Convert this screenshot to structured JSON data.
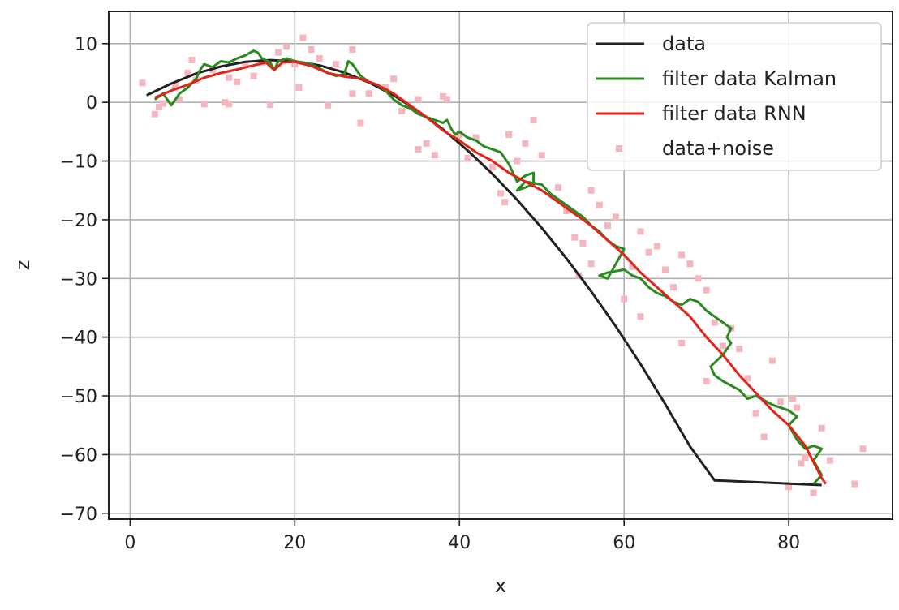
{
  "chart_data": {
    "type": "line",
    "title": "",
    "xlabel": "x",
    "ylabel": "z",
    "xlim": [
      -2.6,
      92.6
    ],
    "ylim": [
      -71,
      15.5
    ],
    "xticks": [
      0,
      20,
      40,
      60,
      80
    ],
    "yticks": [
      10,
      0,
      -10,
      -20,
      -30,
      -40,
      -50,
      -60,
      -70
    ],
    "xtick_labels": [
      "0",
      "20",
      "40",
      "60",
      "80"
    ],
    "ytick_labels": [
      "10",
      "0",
      "−10",
      "−20",
      "−30",
      "−40",
      "−50",
      "−60",
      "−70"
    ],
    "grid": true,
    "legend_position": "top-right",
    "series": [
      {
        "name": "data",
        "kind": "line",
        "color": "#222222",
        "points": [
          [
            2,
            1.2
          ],
          [
            5,
            3.2
          ],
          [
            8,
            4.9
          ],
          [
            11,
            6.1
          ],
          [
            14,
            6.9
          ],
          [
            17,
            7.2
          ],
          [
            20,
            7.0
          ],
          [
            23,
            6.3
          ],
          [
            26,
            5.1
          ],
          [
            29,
            3.4
          ],
          [
            32,
            1.2
          ],
          [
            35,
            -1.5
          ],
          [
            38,
            -4.6
          ],
          [
            41,
            -8.2
          ],
          [
            44,
            -12.2
          ],
          [
            47,
            -16.6
          ],
          [
            50,
            -21.4
          ],
          [
            53,
            -26.6
          ],
          [
            56,
            -32.2
          ],
          [
            59,
            -38.2
          ],
          [
            62,
            -44.6
          ],
          [
            65,
            -51.4
          ],
          [
            68,
            -58.6
          ],
          [
            71,
            -64.4
          ],
          [
            84,
            -65.2
          ]
        ]
      },
      {
        "name": "filter data Kalman",
        "kind": "line",
        "color": "#2a8a1f",
        "points": [
          [
            3,
            0.5
          ],
          [
            4,
            1.5
          ],
          [
            5,
            -0.5
          ],
          [
            6,
            1.5
          ],
          [
            7,
            2.5
          ],
          [
            8,
            4.0
          ],
          [
            8.5,
            5.5
          ],
          [
            9,
            6.5
          ],
          [
            10,
            6.0
          ],
          [
            11,
            7.0
          ],
          [
            12,
            6.8
          ],
          [
            13,
            7.5
          ],
          [
            14,
            8.0
          ],
          [
            15,
            8.8
          ],
          [
            15.5,
            8.5
          ],
          [
            16,
            7.5
          ],
          [
            17,
            6.8
          ],
          [
            17.5,
            5.5
          ],
          [
            18,
            7.0
          ],
          [
            19,
            7.5
          ],
          [
            20,
            7.0
          ],
          [
            21,
            6.8
          ],
          [
            22,
            6.5
          ],
          [
            23,
            5.8
          ],
          [
            24,
            5.0
          ],
          [
            25,
            4.5
          ],
          [
            26,
            4.8
          ],
          [
            26.5,
            7.0
          ],
          [
            27,
            6.5
          ],
          [
            27.5,
            5.5
          ],
          [
            28,
            4.5
          ],
          [
            29,
            3.5
          ],
          [
            30,
            3.0
          ],
          [
            31,
            2.0
          ],
          [
            32,
            0.5
          ],
          [
            33,
            -0.5
          ],
          [
            34,
            -1.0
          ],
          [
            35,
            -2.0
          ],
          [
            36,
            -2.5
          ],
          [
            37,
            -3.0
          ],
          [
            38,
            -3.5
          ],
          [
            38.5,
            -3.0
          ],
          [
            39,
            -4.5
          ],
          [
            39.5,
            -5.5
          ],
          [
            40,
            -5.0
          ],
          [
            41,
            -6.0
          ],
          [
            42,
            -6.5
          ],
          [
            43,
            -7.5
          ],
          [
            44,
            -8.0
          ],
          [
            45,
            -8.5
          ],
          [
            46,
            -10.5
          ],
          [
            47,
            -13.5
          ],
          [
            48,
            -12.5
          ],
          [
            49,
            -12.0
          ],
          [
            49,
            -14.0
          ],
          [
            47,
            -15.0
          ],
          [
            48,
            -13.5
          ],
          [
            50,
            -14.0
          ],
          [
            51,
            -15.5
          ],
          [
            52,
            -16.5
          ],
          [
            53,
            -17.5
          ],
          [
            54,
            -18.5
          ],
          [
            55,
            -19.5
          ],
          [
            56,
            -21.0
          ],
          [
            57,
            -22.0
          ],
          [
            58,
            -23.5
          ],
          [
            59,
            -24.5
          ],
          [
            60,
            -25.0
          ],
          [
            59,
            -27.5
          ],
          [
            58,
            -30.0
          ],
          [
            57,
            -29.5
          ],
          [
            58,
            -29.0
          ],
          [
            60,
            -28.5
          ],
          [
            61,
            -29.5
          ],
          [
            62,
            -30.0
          ],
          [
            63,
            -31.5
          ],
          [
            64,
            -32.5
          ],
          [
            65,
            -33.0
          ],
          [
            66,
            -34.0
          ],
          [
            67,
            -34.5
          ],
          [
            68,
            -33.5
          ],
          [
            69,
            -34.0
          ],
          [
            70,
            -35.5
          ],
          [
            71,
            -36.5
          ],
          [
            72,
            -37.5
          ],
          [
            73,
            -38.5
          ],
          [
            72.5,
            -40.0
          ],
          [
            73,
            -41.0
          ],
          [
            72,
            -43.0
          ],
          [
            70.5,
            -45.0
          ],
          [
            71,
            -46.5
          ],
          [
            72,
            -47.5
          ],
          [
            74,
            -49.0
          ],
          [
            75,
            -50.5
          ],
          [
            76,
            -50.0
          ],
          [
            78,
            -51.5
          ],
          [
            80,
            -52.5
          ],
          [
            81,
            -53.5
          ],
          [
            80,
            -55.0
          ],
          [
            81,
            -57.5
          ],
          [
            82,
            -59.0
          ],
          [
            83,
            -58.5
          ],
          [
            84,
            -59.0
          ],
          [
            83,
            -61.0
          ],
          [
            84,
            -63.5
          ],
          [
            83,
            -65.0
          ]
        ]
      },
      {
        "name": "filter data RNN",
        "kind": "line",
        "color": "#e2231a",
        "points": [
          [
            3,
            0.8
          ],
          [
            5,
            2.0
          ],
          [
            7,
            3.0
          ],
          [
            9,
            4.2
          ],
          [
            11,
            5.0
          ],
          [
            13,
            5.6
          ],
          [
            15,
            6.3
          ],
          [
            16.5,
            6.8
          ],
          [
            17.5,
            5.5
          ],
          [
            18.5,
            6.8
          ],
          [
            20,
            6.9
          ],
          [
            22,
            6.2
          ],
          [
            24,
            5.0
          ],
          [
            26,
            4.4
          ],
          [
            28,
            4.0
          ],
          [
            30,
            3.0
          ],
          [
            32,
            1.5
          ],
          [
            34,
            -0.5
          ],
          [
            36,
            -2.5
          ],
          [
            38,
            -4.8
          ],
          [
            40,
            -6.5
          ],
          [
            42,
            -8.5
          ],
          [
            44,
            -10.0
          ],
          [
            46,
            -12.0
          ],
          [
            48,
            -13.5
          ],
          [
            50,
            -15.0
          ],
          [
            52,
            -17.0
          ],
          [
            54,
            -19.0
          ],
          [
            56,
            -21.0
          ],
          [
            58,
            -23.5
          ],
          [
            60,
            -26.0
          ],
          [
            62,
            -29.0
          ],
          [
            64,
            -31.5
          ],
          [
            66,
            -34.0
          ],
          [
            68,
            -36.5
          ],
          [
            70,
            -40.0
          ],
          [
            72,
            -43.0
          ],
          [
            74,
            -46.5
          ],
          [
            76,
            -49.5
          ],
          [
            78,
            -52.5
          ],
          [
            80,
            -55.0
          ],
          [
            82,
            -58.5
          ],
          [
            84,
            -64.0
          ],
          [
            84.5,
            -65.0
          ]
        ]
      },
      {
        "name": "data+noise",
        "kind": "scatter",
        "color": "#f4b6bf",
        "points": [
          [
            1.5,
            3.3
          ],
          [
            3,
            -2.0
          ],
          [
            3.5,
            -0.8
          ],
          [
            4,
            -0.2
          ],
          [
            5.5,
            2.8
          ],
          [
            7,
            5.0
          ],
          [
            7.5,
            7.2
          ],
          [
            8,
            3.8
          ],
          [
            9,
            -0.3
          ],
          [
            10,
            5.5
          ],
          [
            11.5,
            0.0
          ],
          [
            12,
            4.2
          ],
          [
            13,
            3.5
          ],
          [
            14,
            6.5
          ],
          [
            15,
            4.5
          ],
          [
            16,
            6.8
          ],
          [
            17,
            -0.4
          ],
          [
            18,
            8.5
          ],
          [
            19,
            9.5
          ],
          [
            20,
            6.5
          ],
          [
            20.5,
            2.5
          ],
          [
            21,
            11.0
          ],
          [
            22,
            9.0
          ],
          [
            23,
            7.5
          ],
          [
            24,
            -0.5
          ],
          [
            25,
            6.5
          ],
          [
            26,
            5.0
          ],
          [
            27,
            9.0
          ],
          [
            28,
            -3.5
          ],
          [
            29,
            1.5
          ],
          [
            31,
            2.5
          ],
          [
            32,
            4.0
          ],
          [
            33,
            -1.5
          ],
          [
            35,
            -8.0
          ],
          [
            36,
            -7.0
          ],
          [
            37,
            -9.0
          ],
          [
            38,
            1.0
          ],
          [
            38.5,
            0.5
          ],
          [
            40,
            -5.5
          ],
          [
            41,
            -9.5
          ],
          [
            42,
            -6.0
          ],
          [
            44,
            -11.0
          ],
          [
            45,
            -15.5
          ],
          [
            45.5,
            -17.0
          ],
          [
            46,
            -5.5
          ],
          [
            47,
            -10.0
          ],
          [
            48,
            -7.0
          ],
          [
            49,
            -3.0
          ],
          [
            50,
            -9.0
          ],
          [
            52,
            -14.5
          ],
          [
            53,
            -18.5
          ],
          [
            54,
            -23.0
          ],
          [
            54.5,
            -29.5
          ],
          [
            55,
            -24.0
          ],
          [
            56,
            -27.5
          ],
          [
            57,
            -17.5
          ],
          [
            58,
            -21.0
          ],
          [
            59,
            -19.5
          ],
          [
            60,
            -33.5
          ],
          [
            61,
            -28.0
          ],
          [
            62,
            -36.5
          ],
          [
            63,
            -25.5
          ],
          [
            64,
            -24.5
          ],
          [
            65,
            -28.5
          ],
          [
            66,
            -31.5
          ],
          [
            67,
            -26.0
          ],
          [
            68,
            -27.5
          ],
          [
            69,
            -30.0
          ],
          [
            70,
            -32.0
          ],
          [
            71,
            -37.5
          ],
          [
            72,
            -41.5
          ],
          [
            73,
            -38.5
          ],
          [
            74,
            -42.0
          ],
          [
            75,
            -47.0
          ],
          [
            76,
            -53.0
          ],
          [
            77,
            -57.0
          ],
          [
            78,
            -44.0
          ],
          [
            79,
            -51.0
          ],
          [
            80,
            -65.5
          ],
          [
            80.5,
            -50.5
          ],
          [
            81,
            -52.0
          ],
          [
            81.5,
            -61.5
          ],
          [
            82,
            -60.5
          ],
          [
            83,
            -66.5
          ],
          [
            84,
            -55.5
          ],
          [
            85,
            -61.0
          ],
          [
            88,
            -65.0
          ],
          [
            89,
            -59.0
          ],
          [
            70,
            -47.5
          ],
          [
            67,
            -41.0
          ],
          [
            62,
            -22.0
          ],
          [
            56,
            -15.0
          ],
          [
            35,
            0.5
          ],
          [
            27,
            1.5
          ],
          [
            12,
            -0.3
          ],
          [
            6,
            0.5
          ]
        ]
      }
    ]
  }
}
